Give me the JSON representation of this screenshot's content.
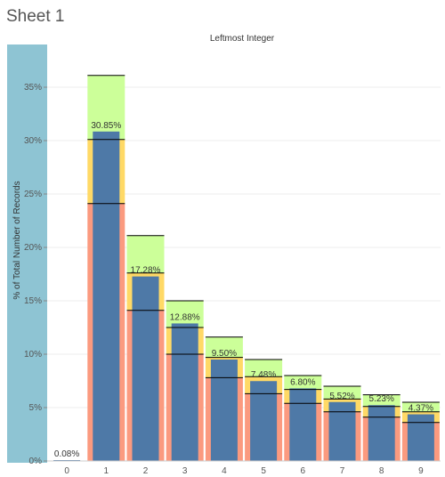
{
  "sheet": {
    "title": "Sheet 1"
  },
  "chart_data": {
    "type": "bar",
    "title": "Leftmost Integer",
    "xlabel": "",
    "ylabel": "% of Total Number of Records",
    "ylim": [
      0,
      35
    ],
    "y_ticks": [
      "0%",
      "5%",
      "10%",
      "15%",
      "20%",
      "25%",
      "30%",
      "35%"
    ],
    "categories": [
      "0",
      "1",
      "2",
      "3",
      "4",
      "5",
      "6",
      "7",
      "8",
      "9"
    ],
    "values": [
      0.08,
      30.85,
      17.28,
      12.88,
      9.5,
      7.48,
      6.8,
      5.52,
      5.23,
      4.37
    ],
    "data_labels": [
      "0.08%",
      "30.85%",
      "17.28%",
      "12.88%",
      "9.50%",
      "7.48%",
      "6.80%",
      "5.52%",
      "5.23%",
      "4.37%"
    ],
    "reference_bands": [
      {
        "category": "1",
        "lower": 24.1,
        "middle": 30.1,
        "upper": 36.1
      },
      {
        "category": "2",
        "lower": 14.1,
        "middle": 17.6,
        "upper": 21.1
      },
      {
        "category": "3",
        "lower": 10.0,
        "middle": 12.5,
        "upper": 15.0
      },
      {
        "category": "4",
        "lower": 7.8,
        "middle": 9.7,
        "upper": 11.6
      },
      {
        "category": "5",
        "lower": 6.3,
        "middle": 7.9,
        "upper": 9.5
      },
      {
        "category": "6",
        "lower": 5.4,
        "middle": 6.7,
        "upper": 8.0
      },
      {
        "category": "7",
        "lower": 4.6,
        "middle": 5.8,
        "upper": 7.0
      },
      {
        "category": "8",
        "lower": 4.1,
        "middle": 5.1,
        "upper": 6.2
      },
      {
        "category": "9",
        "lower": 3.6,
        "middle": 4.6,
        "upper": 5.5
      }
    ],
    "grid": true,
    "colors": {
      "bar": "#4e79a7",
      "band_lower": "#fb9a7f",
      "band_middle": "#ffd966",
      "band_upper": "#ccff99",
      "axis_panel": "#8ec4d3",
      "gridline": "#eeeeee",
      "refline": "#000000"
    }
  }
}
